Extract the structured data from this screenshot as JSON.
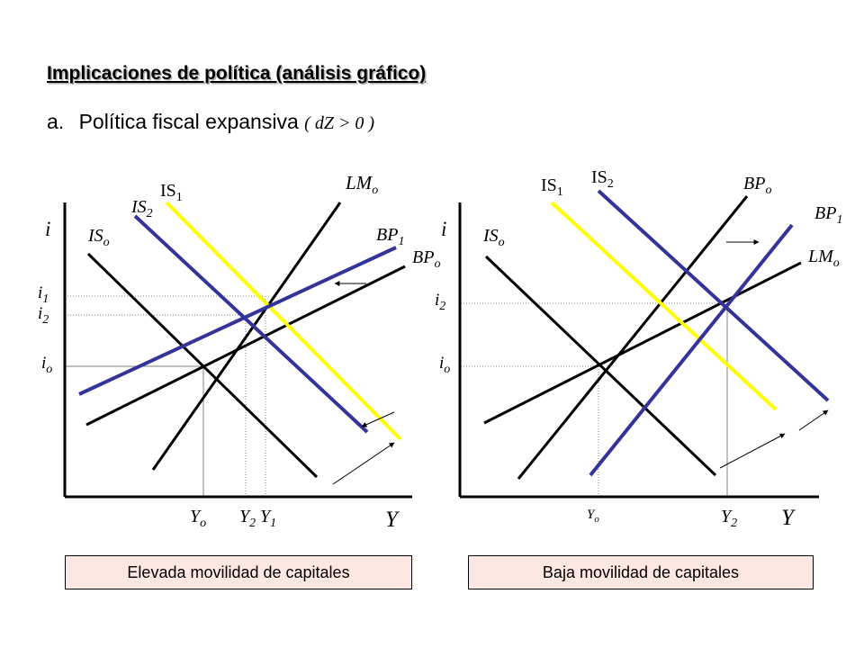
{
  "header": {
    "title": "Implicaciones de política (análisis gráfico)",
    "item_marker": "a.",
    "item_text": "Política fiscal expansiva",
    "item_condition": "( dZ > 0 )"
  },
  "left_panel": {
    "caption": "Elevada movilidad de capitales",
    "y_axis_label": "i",
    "x_axis_label": "Y",
    "curve_labels": {
      "LMo": {
        "base": "LM",
        "sub": "o"
      },
      "IS1": {
        "base": "IS",
        "sub": "1"
      },
      "IS2": {
        "base": "IS",
        "sub": "2"
      },
      "ISo": {
        "base": "IS",
        "sub": "o"
      },
      "BP1": {
        "base": "BP",
        "sub": "1"
      },
      "BPo": {
        "base": "BP",
        "sub": "o"
      }
    },
    "rate_labels": {
      "i1": {
        "base": "i",
        "sub": "1"
      },
      "i2": {
        "base": "i",
        "sub": "2"
      },
      "io": {
        "base": "i",
        "sub": "o"
      }
    },
    "output_labels": {
      "Yo": {
        "base": "Y",
        "sub": "o"
      },
      "Y2": {
        "base": "Y",
        "sub": "2"
      },
      "Y1": {
        "base": "Y",
        "sub": "1"
      }
    }
  },
  "right_panel": {
    "caption": "Baja movilidad de capitales",
    "y_axis_label": "i",
    "x_axis_label": "Y",
    "curve_labels": {
      "IS1": {
        "base": "IS",
        "sub": "1"
      },
      "IS2": {
        "base": "IS",
        "sub": "2"
      },
      "ISo": {
        "base": "IS",
        "sub": "o"
      },
      "BPo": {
        "base": "BP",
        "sub": "o"
      },
      "BP1": {
        "base": "BP",
        "sub": "1"
      },
      "LMo": {
        "base": "LM",
        "sub": "o"
      }
    },
    "rate_labels": {
      "i2": {
        "base": "i",
        "sub": "2"
      },
      "io": {
        "base": "i",
        "sub": "o"
      }
    },
    "output_labels": {
      "Yo": {
        "base": "Y",
        "sub": "o"
      },
      "Y2": {
        "base": "Y",
        "sub": "2"
      }
    }
  },
  "colors": {
    "black_curves": "#000000",
    "blue_curves": "#333399",
    "yellow_curves": "#ffff00",
    "guide_lines": "#808080",
    "caption_fill": "#fde7e3"
  }
}
